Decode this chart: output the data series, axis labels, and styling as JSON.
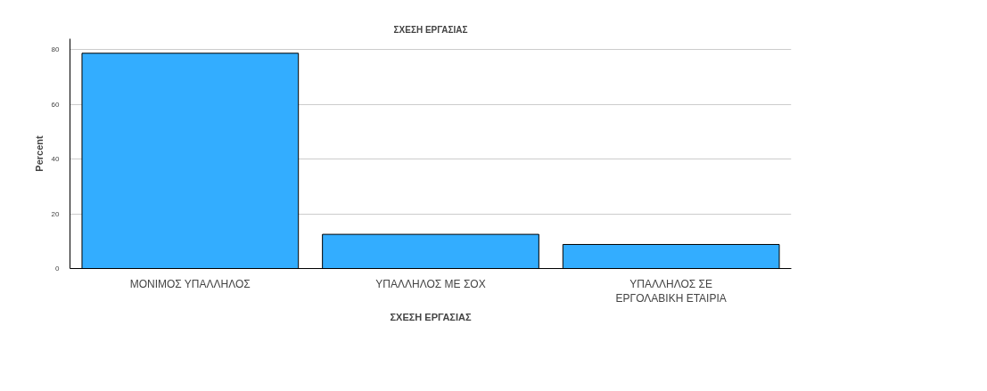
{
  "chart_data": {
    "type": "bar",
    "title": "ΣΧΕΣΗ ΕΡΓΑΣΙΑΣ",
    "xlabel": "ΣΧΕΣΗ ΕΡΓΑΣΙΑΣ",
    "ylabel": "Percent",
    "categories": [
      "ΜΟΝΙΜΟΣ ΥΠΑΛΛΗΛΟΣ",
      "ΥΠΑΛΛΗΛΟΣ ΜΕ ΣΟΧ",
      "ΥΠΑΛΛΗΛΟΣ ΣΕ ΕΡΓΟΛΑΒΙΚΗ ΕΤΑΙΡΙΑ"
    ],
    "values": [
      78.7,
      12.5,
      8.8
    ],
    "color": "#33adff",
    "ylim": [
      0,
      84
    ],
    "yticks": [
      0,
      20,
      40,
      60,
      80
    ],
    "grid": "y"
  }
}
